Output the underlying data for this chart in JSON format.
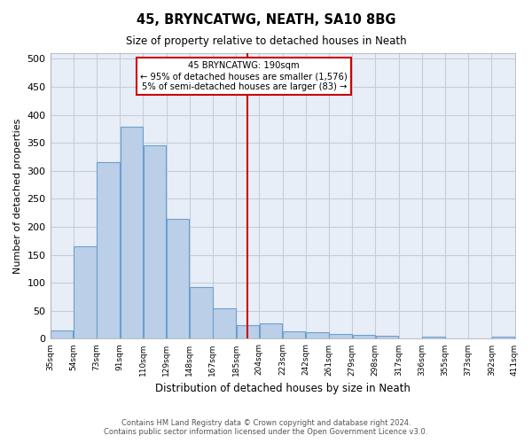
{
  "title": "45, BRYNCATWG, NEATH, SA10 8BG",
  "subtitle": "Size of property relative to detached houses in Neath",
  "xlabel": "Distribution of detached houses by size in Neath",
  "ylabel": "Number of detached properties",
  "bar_values": [
    15,
    165,
    315,
    378,
    345,
    215,
    93,
    55,
    24,
    28,
    14,
    11,
    9,
    7,
    5,
    0,
    4,
    0,
    0,
    4
  ],
  "tick_labels": [
    "35sqm",
    "54sqm",
    "73sqm",
    "91sqm",
    "110sqm",
    "129sqm",
    "148sqm",
    "167sqm",
    "185sqm",
    "204sqm",
    "223sqm",
    "242sqm",
    "261sqm",
    "279sqm",
    "298sqm",
    "317sqm",
    "336sqm",
    "355sqm",
    "373sqm",
    "392sqm",
    "411sqm"
  ],
  "bar_color": "#BBCFE8",
  "bar_edge_color": "#6AA0D0",
  "vline_bin": 8,
  "vline_color": "#CC0000",
  "annotation_title": "45 BRYNCATWG: 190sqm",
  "annotation_line1": "← 95% of detached houses are smaller (1,576)",
  "annotation_line2": "5% of semi-detached houses are larger (83) →",
  "annotation_box_color": "#CC0000",
  "ylim": [
    0,
    510
  ],
  "yticks": [
    0,
    50,
    100,
    150,
    200,
    250,
    300,
    350,
    400,
    450,
    500
  ],
  "footer1": "Contains HM Land Registry data © Crown copyright and database right 2024.",
  "footer2": "Contains public sector information licensed under the Open Government Licence v3.0.",
  "bg_color": "#FFFFFF",
  "plot_bg_color": "#E8EEF7",
  "grid_color": "#C5CDD8"
}
